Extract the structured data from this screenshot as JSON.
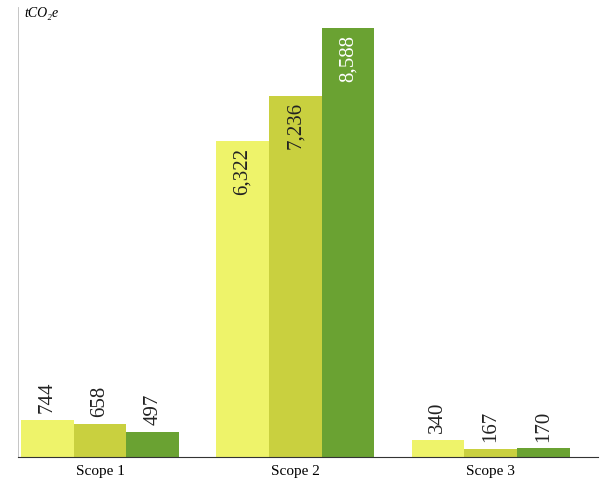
{
  "chart_data": {
    "type": "bar",
    "y_label": "tCO₂e",
    "categories": [
      "Scope 1",
      "Scope 2",
      "Scope 3"
    ],
    "series": [
      {
        "color": "#eef36a",
        "values": [
          744,
          6322,
          340
        ],
        "value_labels": [
          "744",
          "6,322",
          "340"
        ]
      },
      {
        "color": "#c9d03f",
        "values": [
          658,
          7236,
          167
        ],
        "value_labels": [
          "658",
          "7,236",
          "167"
        ]
      },
      {
        "color": "#6aa232",
        "values": [
          497,
          8588,
          170
        ],
        "value_labels": [
          "497",
          "8,588",
          "170"
        ]
      }
    ],
    "ylim": [
      0,
      9000
    ],
    "yticks": [],
    "data_labels": true,
    "tick_labels": "x",
    "grid": false
  }
}
